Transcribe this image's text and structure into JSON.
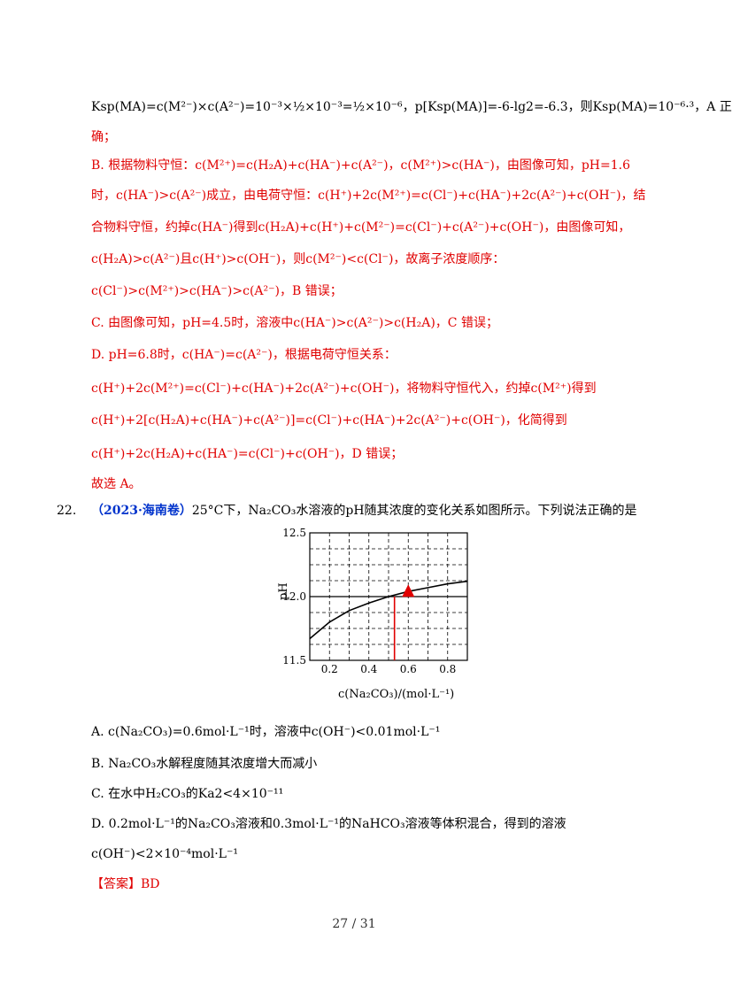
{
  "solution": {
    "l1": "Ksp(MA)=c(M²⁻)×c(A²⁻)=10⁻³×½×10⁻³=½×10⁻⁶，p[Ksp(MA)]=-6-lg2=-6.3，则Ksp(MA)=10⁻⁶·³，A 正",
    "l2": "确；",
    "l3": "B. 根据物料守恒：c(M²⁺)=c(H₂A)+c(HA⁻)+c(A²⁻)，c(M²⁺)>c(HA⁻)，由图像可知，pH=1.6",
    "l4": "时，c(HA⁻)>c(A²⁻)成立，由电荷守恒：c(H⁺)+2c(M²⁺)=c(Cl⁻)+c(HA⁻)+2c(A²⁻)+c(OH⁻)，结",
    "l5": "合物料守恒，约掉c(HA⁻)得到c(H₂A)+c(H⁺)+c(M²⁻)=c(Cl⁻)+c(A²⁻)+c(OH⁻)，由图像可知，",
    "l6": "c(H₂A)>c(A²⁻)且c(H⁺)>c(OH⁻)，则c(M²⁻)<c(Cl⁻)，故离子浓度顺序：",
    "l7": "c(Cl⁻)>c(M²⁺)>c(HA⁻)>c(A²⁻)，B 错误；",
    "l8": "C. 由图像可知，pH=4.5时，溶液中c(HA⁻)>c(A²⁻)>c(H₂A)，C 错误；",
    "l9": "D. pH=6.8时，c(HA⁻)=c(A²⁻)，根据电荷守恒关系：",
    "l10": "c(H⁺)+2c(M²⁺)=c(Cl⁻)+c(HA⁻)+2c(A²⁻)+c(OH⁻)，将物料守恒代入，约掉c(M²⁺)得到",
    "l11": "c(H⁺)+2[c(H₂A)+c(HA⁻)+c(A²⁻)]=c(Cl⁻)+c(HA⁻)+2c(A²⁻)+c(OH⁻)，化简得到",
    "l12": "c(H⁺)+2c(H₂A)+c(HA⁻)=c(Cl⁻)+c(OH⁻)，D 错误；",
    "l13": "故选 A。"
  },
  "question": {
    "number": "22.",
    "source": "（2023·海南卷）",
    "stem": "25°C下，Na₂CO₃水溶液的pH随其浓度的变化关系如图所示。下列说法正确的是",
    "optA": "A. c(Na₂CO₃)=0.6mol·L⁻¹时，溶液中c(OH⁻)<0.01mol·L⁻¹",
    "optB": "B. Na₂CO₃水解程度随其浓度增大而减小",
    "optC": "C. 在水中H₂CO₃的Ka2<4×10⁻¹¹",
    "optD1": "D. 0.2mol·L⁻¹的Na₂CO₃溶液和0.3mol·L⁻¹的NaHCO₃溶液等体积混合，得到的溶液",
    "optD2": "c(OH⁻)<2×10⁻⁴mol·L⁻¹",
    "answer": "【答案】BD"
  },
  "chart_data": {
    "type": "line",
    "xlabel": "c(Na₂CO₃)/(mol·L⁻¹)",
    "ylabel": "pH",
    "xlim": [
      0.1,
      0.9
    ],
    "ylim": [
      11.5,
      12.5
    ],
    "xticks": [
      "0.2",
      "0.4",
      "0.6",
      "0.8"
    ],
    "yticks": [
      "11.5",
      "12.0",
      "12.5"
    ],
    "x": [
      0.1,
      0.2,
      0.3,
      0.4,
      0.5,
      0.6,
      0.7,
      0.8,
      0.9
    ],
    "y": [
      11.67,
      11.8,
      11.89,
      11.95,
      12.0,
      12.04,
      12.07,
      12.1,
      12.12
    ],
    "marker_x": 0.53,
    "marker_y": 12.0,
    "annotation_point": {
      "x": 0.6,
      "y": 12.04
    },
    "colors": {
      "curve": "#000000",
      "marker": "#e00000"
    }
  },
  "footer": {
    "page": "27 / 31"
  }
}
